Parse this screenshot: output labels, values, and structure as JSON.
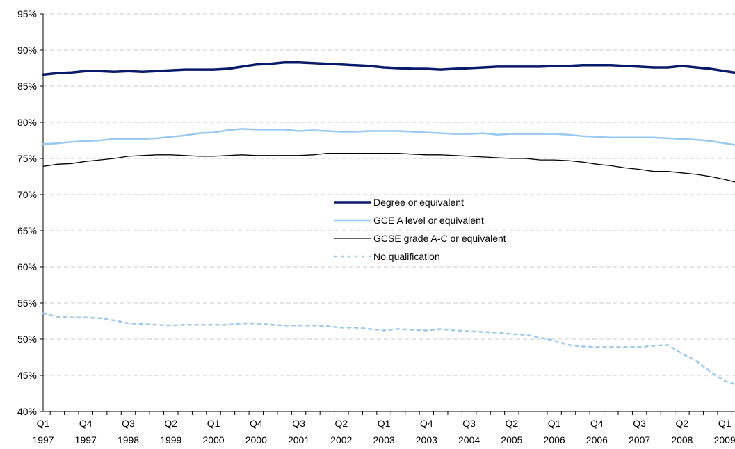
{
  "chart_data": {
    "type": "line",
    "title": "",
    "xlabel": "",
    "ylabel": "",
    "ylim": [
      40,
      95
    ],
    "y_ticks": [
      "40%",
      "45%",
      "50%",
      "55%",
      "60%",
      "65%",
      "70%",
      "75%",
      "80%",
      "85%",
      "90%",
      "95%"
    ],
    "grid": "horizontal-dashed",
    "legend_position": "center",
    "x_tick_labels": [
      {
        "q": "Q1",
        "y": "1997"
      },
      {
        "q": "Q4",
        "y": "1997"
      },
      {
        "q": "Q3",
        "y": "1998"
      },
      {
        "q": "Q2",
        "y": "1999"
      },
      {
        "q": "Q1",
        "y": "2000"
      },
      {
        "q": "Q4",
        "y": "2000"
      },
      {
        "q": "Q3",
        "y": "2001"
      },
      {
        "q": "Q2",
        "y": "2002"
      },
      {
        "q": "Q1",
        "y": "2003"
      },
      {
        "q": "Q4",
        "y": "2003"
      },
      {
        "q": "Q3",
        "y": "2004"
      },
      {
        "q": "Q2",
        "y": "2005"
      },
      {
        "q": "Q1",
        "y": "2006"
      },
      {
        "q": "Q4",
        "y": "2006"
      },
      {
        "q": "Q3",
        "y": "2007"
      },
      {
        "q": "Q2",
        "y": "2008"
      },
      {
        "q": "Q1",
        "y": "2009"
      }
    ],
    "x": [
      "Q1 1997",
      "Q2 1997",
      "Q3 1997",
      "Q4 1997",
      "Q1 1998",
      "Q2 1998",
      "Q3 1998",
      "Q4 1998",
      "Q1 1999",
      "Q2 1999",
      "Q3 1999",
      "Q4 1999",
      "Q1 2000",
      "Q2 2000",
      "Q3 2000",
      "Q4 2000",
      "Q1 2001",
      "Q2 2001",
      "Q3 2001",
      "Q4 2001",
      "Q1 2002",
      "Q2 2002",
      "Q3 2002",
      "Q4 2002",
      "Q1 2003",
      "Q2 2003",
      "Q3 2003",
      "Q4 2003",
      "Q1 2004",
      "Q2 2004",
      "Q3 2004",
      "Q4 2004",
      "Q1 2005",
      "Q2 2005",
      "Q3 2005",
      "Q4 2005",
      "Q1 2006",
      "Q2 2006",
      "Q3 2006",
      "Q4 2006",
      "Q1 2007",
      "Q2 2007",
      "Q3 2007",
      "Q4 2007",
      "Q1 2008",
      "Q2 2008",
      "Q3 2008",
      "Q4 2008",
      "Q1 2009",
      "Q2 2009"
    ],
    "series": [
      {
        "name": "Degree or equivalent",
        "color": "#0a1a6b",
        "style": "thick",
        "values": [
          86.6,
          86.8,
          86.9,
          87.1,
          87.1,
          87.0,
          87.1,
          87.0,
          87.1,
          87.2,
          87.3,
          87.3,
          87.3,
          87.4,
          87.7,
          88.0,
          88.1,
          88.3,
          88.3,
          88.2,
          88.1,
          88.0,
          87.9,
          87.8,
          87.6,
          87.5,
          87.4,
          87.4,
          87.3,
          87.4,
          87.5,
          87.6,
          87.7,
          87.7,
          87.7,
          87.7,
          87.8,
          87.8,
          87.9,
          87.9,
          87.9,
          87.8,
          87.7,
          87.6,
          87.6,
          87.8,
          87.6,
          87.4,
          87.1,
          86.8
        ]
      },
      {
        "name": "GCE A level or equivalent",
        "color": "#99c8f0",
        "style": "medium",
        "values": [
          77.0,
          77.1,
          77.3,
          77.4,
          77.5,
          77.7,
          77.7,
          77.7,
          77.8,
          78.0,
          78.2,
          78.5,
          78.6,
          78.9,
          79.1,
          79.0,
          79.0,
          79.0,
          78.8,
          78.9,
          78.8,
          78.7,
          78.7,
          78.8,
          78.8,
          78.8,
          78.7,
          78.6,
          78.5,
          78.4,
          78.4,
          78.5,
          78.3,
          78.4,
          78.4,
          78.4,
          78.4,
          78.3,
          78.1,
          78.0,
          77.9,
          77.9,
          77.9,
          77.9,
          77.8,
          77.7,
          77.6,
          77.4,
          77.1,
          76.8
        ]
      },
      {
        "name": "GCSE grade A-C or equivalent",
        "color": "#000000",
        "style": "thin",
        "values": [
          73.9,
          74.2,
          74.3,
          74.6,
          74.8,
          75.0,
          75.3,
          75.4,
          75.5,
          75.5,
          75.4,
          75.3,
          75.3,
          75.4,
          75.5,
          75.4,
          75.4,
          75.4,
          75.4,
          75.5,
          75.7,
          75.7,
          75.7,
          75.7,
          75.7,
          75.7,
          75.6,
          75.5,
          75.5,
          75.4,
          75.3,
          75.2,
          75.1,
          75.0,
          75.0,
          74.8,
          74.8,
          74.7,
          74.5,
          74.2,
          74.0,
          73.7,
          73.5,
          73.2,
          73.2,
          73.0,
          72.8,
          72.5,
          72.1,
          71.6
        ]
      },
      {
        "name": "No qualification",
        "color": "#99c8f0",
        "style": "dashed",
        "values": [
          53.6,
          53.1,
          53.0,
          53.0,
          52.9,
          52.6,
          52.2,
          52.1,
          52.0,
          51.9,
          52.0,
          52.0,
          52.0,
          52.0,
          52.2,
          52.2,
          52.0,
          51.9,
          51.9,
          51.9,
          51.8,
          51.6,
          51.6,
          51.4,
          51.2,
          51.4,
          51.3,
          51.2,
          51.4,
          51.2,
          51.1,
          51.0,
          50.9,
          50.7,
          50.6,
          50.2,
          49.8,
          49.2,
          49.0,
          48.9,
          48.9,
          48.9,
          48.9,
          49.1,
          49.2,
          48.0,
          47.0,
          45.5,
          44.2,
          43.6
        ]
      }
    ]
  }
}
